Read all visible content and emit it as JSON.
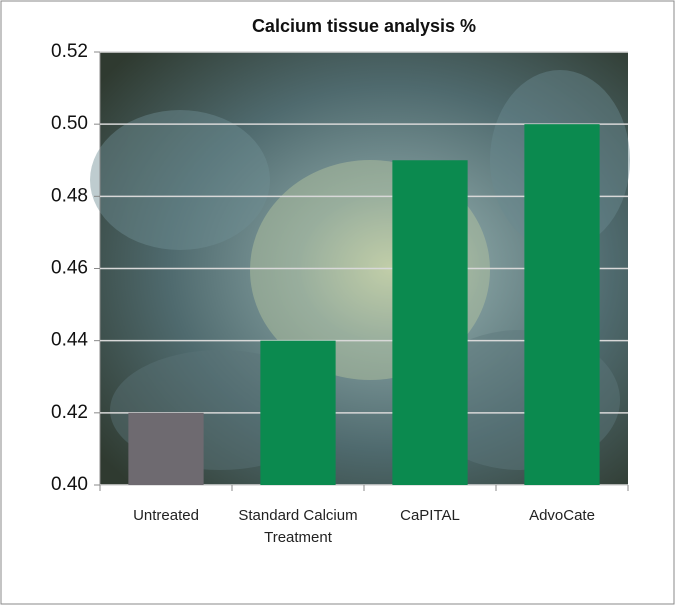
{
  "chart_data": {
    "type": "bar",
    "title": "Calcium tissue analysis %",
    "categories": [
      "Untreated",
      "Standard Calcium Treatment",
      "CaPITAL",
      "AdvoCate"
    ],
    "values": [
      0.42,
      0.44,
      0.49,
      0.5
    ],
    "colors": [
      "#6e6a70",
      "#0b8a4f",
      "#0b8a4f",
      "#0b8a4f"
    ],
    "ylim": [
      0.4,
      0.52
    ],
    "yticks": [
      {
        "value": 0.4,
        "label": "0.40"
      },
      0.42,
      0.44,
      0.46,
      0.48,
      {
        "value": 0.5,
        "label": "0.50"
      },
      0.52
    ],
    "grid": true
  }
}
